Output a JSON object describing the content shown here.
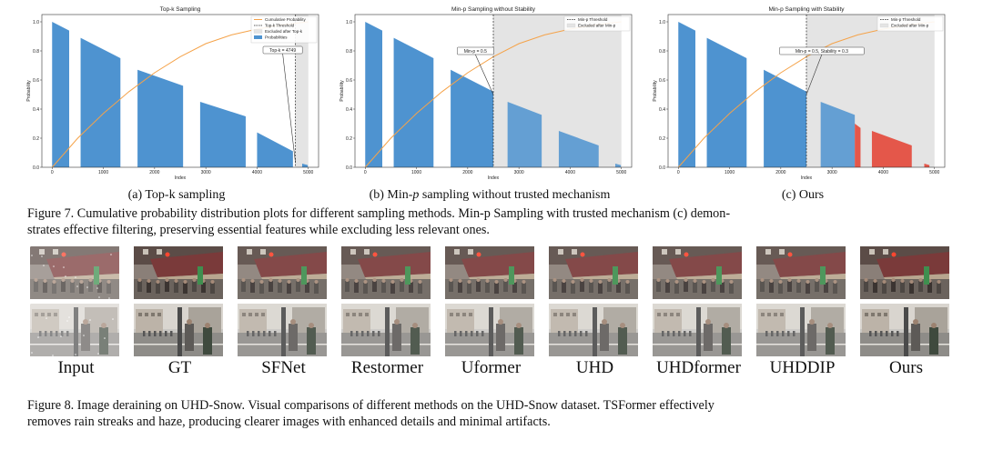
{
  "figure7": {
    "charts": [
      {
        "subcaption": "(a) Top-k sampling",
        "chart_data": {
          "type": "bar",
          "title": "Top-k Sampling",
          "xlabel": "Index",
          "ylabel": "Probability",
          "xlim": [
            -200,
            5200
          ],
          "ylim": [
            0,
            1.05
          ],
          "xticks": [
            "0",
            "1000",
            "2000",
            "3000",
            "4000",
            "5000"
          ],
          "yticks": [
            "0.0",
            "0.2",
            "0.4",
            "0.6",
            "0.8",
            "1.0"
          ],
          "legend": [
            "Cumulative Probability",
            "Top-k Threshold",
            "Excluded after Top-k",
            "Probabilities"
          ],
          "legend_position": "top-right",
          "threshold_x": 4749,
          "threshold_label": "Top-k = 4749",
          "excluded_range": [
            4749,
            5000
          ],
          "blocks": [
            {
              "x0": 0,
              "x1": 333,
              "y0": 1.0,
              "y1": 0.94
            },
            {
              "x0": 556,
              "x1": 1333,
              "y0": 0.89,
              "y1": 0.75
            },
            {
              "x0": 1667,
              "x1": 2556,
              "y0": 0.67,
              "y1": 0.56
            },
            {
              "x0": 2889,
              "x1": 3778,
              "y0": 0.45,
              "y1": 0.35
            },
            {
              "x0": 4000,
              "x1": 4700,
              "y0": 0.24,
              "y1": 0.11
            },
            {
              "x0": 4880,
              "x1": 4990,
              "y0": 0.025,
              "y1": 0.015
            }
          ],
          "cumulative": [
            [
              0,
              0.0
            ],
            [
              500,
              0.2
            ],
            [
              1000,
              0.37
            ],
            [
              1500,
              0.52
            ],
            [
              2000,
              0.65
            ],
            [
              2500,
              0.76
            ],
            [
              3000,
              0.85
            ],
            [
              3500,
              0.91
            ],
            [
              4000,
              0.95
            ],
            [
              4500,
              0.98
            ],
            [
              5000,
              1.0
            ]
          ]
        }
      },
      {
        "subcaption_parts": [
          "(b) Min-",
          "p",
          " sampling without trusted mechanism"
        ],
        "chart_data": {
          "type": "bar",
          "title": "Min-p Sampling without Stability",
          "xlabel": "Index",
          "ylabel": "Probability",
          "xlim": [
            -200,
            5200
          ],
          "ylim": [
            0,
            1.05
          ],
          "xticks": [
            "0",
            "1000",
            "2000",
            "3000",
            "4000",
            "5000"
          ],
          "yticks": [
            "0.0",
            "0.2",
            "0.4",
            "0.6",
            "0.8",
            "1.0"
          ],
          "legend": [
            "Min-p Threshold",
            "Excluded after Min-p"
          ],
          "legend_position": "top-right",
          "threshold_x": 2500,
          "threshold_label": "Min-p = 0.5",
          "excluded_range": [
            2500,
            5000
          ],
          "blocks": [
            {
              "x0": 0,
              "x1": 333,
              "y0": 1.0,
              "y1": 0.94
            },
            {
              "x0": 556,
              "x1": 1333,
              "y0": 0.89,
              "y1": 0.75
            },
            {
              "x0": 1667,
              "x1": 2500,
              "y0": 0.67,
              "y1": 0.52
            },
            {
              "x0": 2778,
              "x1": 3444,
              "y0": 0.45,
              "y1": 0.36
            },
            {
              "x0": 3778,
              "x1": 4556,
              "y0": 0.25,
              "y1": 0.15
            },
            {
              "x0": 4880,
              "x1": 4990,
              "y0": 0.025,
              "y1": 0.015
            }
          ],
          "cumulative": [
            [
              0,
              0.0
            ],
            [
              500,
              0.2
            ],
            [
              1000,
              0.37
            ],
            [
              1500,
              0.52
            ],
            [
              2000,
              0.65
            ],
            [
              2500,
              0.76
            ],
            [
              3000,
              0.85
            ],
            [
              3500,
              0.91
            ],
            [
              4000,
              0.95
            ],
            [
              4500,
              0.98
            ],
            [
              5000,
              1.0
            ]
          ]
        }
      },
      {
        "subcaption": "(c) Ours",
        "chart_data": {
          "type": "bar",
          "title": "Min-p Sampling with Stability",
          "xlabel": "Index",
          "ylabel": "Probability",
          "xlim": [
            -200,
            5200
          ],
          "ylim": [
            0,
            1.05
          ],
          "xticks": [
            "0",
            "1000",
            "2000",
            "3000",
            "4000",
            "5000"
          ],
          "yticks": [
            "0.0",
            "0.2",
            "0.4",
            "0.6",
            "0.8",
            "1.0"
          ],
          "legend": [
            "Min-p Threshold",
            "Excluded after Min-p"
          ],
          "legend_position": "top-right",
          "threshold_x": 2500,
          "threshold_label": "Min-p = 0.5, Stability = 0.3",
          "excluded_range": [
            2500,
            5000
          ],
          "blocks": [
            {
              "x0": 0,
              "x1": 333,
              "y0": 1.0,
              "y1": 0.94
            },
            {
              "x0": 556,
              "x1": 1333,
              "y0": 0.89,
              "y1": 0.75
            },
            {
              "x0": 1667,
              "x1": 2500,
              "y0": 0.67,
              "y1": 0.52
            },
            {
              "x0": 2778,
              "x1": 3444,
              "y0": 0.45,
              "y1": 0.36
            },
            {
              "x0": 3444,
              "x1": 3556,
              "y0": 0.3,
              "y1": 0.27,
              "highlight": true
            },
            {
              "x0": 3778,
              "x1": 4556,
              "y0": 0.25,
              "y1": 0.15,
              "highlight": true
            },
            {
              "x0": 4800,
              "x1": 4900,
              "y0": 0.025,
              "y1": 0.015,
              "highlight": true
            }
          ],
          "cumulative": [
            [
              0,
              0.0
            ],
            [
              500,
              0.2
            ],
            [
              1000,
              0.37
            ],
            [
              1500,
              0.52
            ],
            [
              2000,
              0.65
            ],
            [
              2500,
              0.76
            ],
            [
              3000,
              0.85
            ],
            [
              3500,
              0.91
            ],
            [
              4000,
              0.95
            ],
            [
              4500,
              0.98
            ],
            [
              5000,
              1.0
            ]
          ]
        }
      }
    ],
    "caption_line1": "Figure 7. Cumulative probability distribution plots for different sampling methods. Min-p Sampling with trusted mechanism (c) demon-",
    "caption_line2": "strates effective filtering, preserving essential features while excluding less relevant ones."
  },
  "figure8": {
    "labels": [
      "Input",
      "GT",
      "SFNet",
      "Restormer",
      "Uformer",
      "UHD",
      "UHDformer",
      "UHDDIP",
      "Ours"
    ],
    "caption_line1": "Figure 8. Image deraining on UHD-Snow. Visual comparisons of different methods on the UHD-Snow dataset. TSFormer effectively",
    "caption_line2": "removes rain streaks and haze, producing clearer images with enhanced details and minimal artifacts."
  },
  "colors": {
    "bar": "#4e93d0",
    "highlight": "#e4574a",
    "cumulative": "#f5a34a",
    "excluded": "#e4e4e4"
  }
}
